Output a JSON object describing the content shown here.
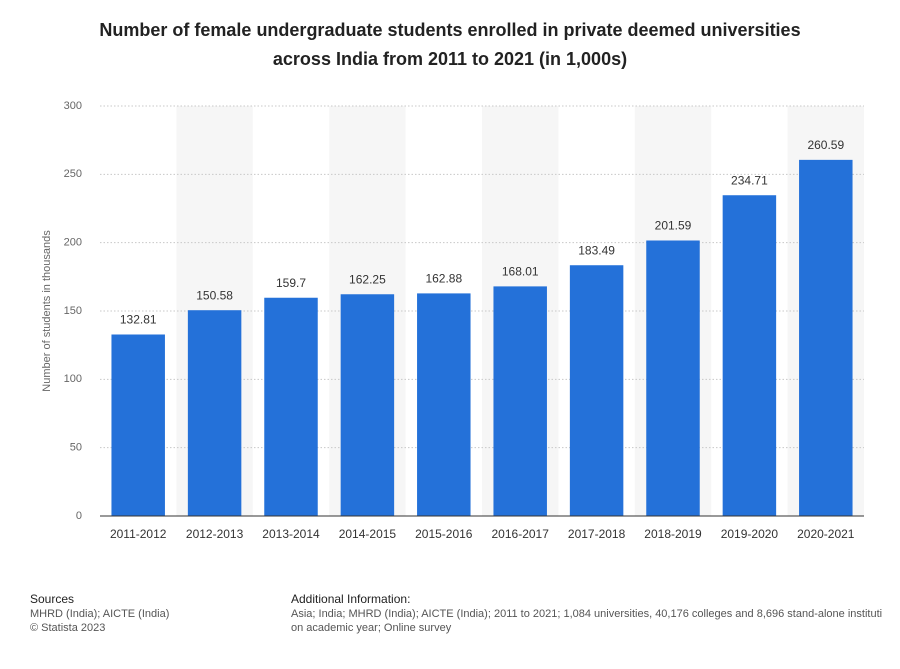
{
  "chart_data": {
    "type": "bar",
    "title": "Number of female undergraduate students enrolled in private deemed universities across India from 2011 to 2021 (in 1,000s)",
    "y_label": "Number of students in thousands",
    "categories": [
      "2011-2012",
      "2012-2013",
      "2013-2014",
      "2014-2015",
      "2015-2016",
      "2016-2017",
      "2017-2018",
      "2018-2019",
      "2019-2020",
      "2020-2021"
    ],
    "values": [
      132.81,
      150.58,
      159.7,
      162.25,
      162.88,
      168.01,
      183.49,
      201.59,
      234.71,
      260.59
    ],
    "color": "#2471d9",
    "ylim": [
      0,
      300
    ],
    "yticks": [
      0,
      50,
      100,
      150,
      200,
      250,
      300
    ],
    "grid": true
  },
  "footer": {
    "sources_label": "Sources",
    "sources": "MHRD (India); AICTE (India)",
    "copyright": "© Statista 2023",
    "additional_label": "Additional Information:",
    "additional_lines": [
      "Asia; India; MHRD (India); AICTE (India); 2011 to 2021; 1,084 universities, 40,176 colleges and 8,696 stand-alone instituti",
      "on academic year; Online survey"
    ]
  }
}
